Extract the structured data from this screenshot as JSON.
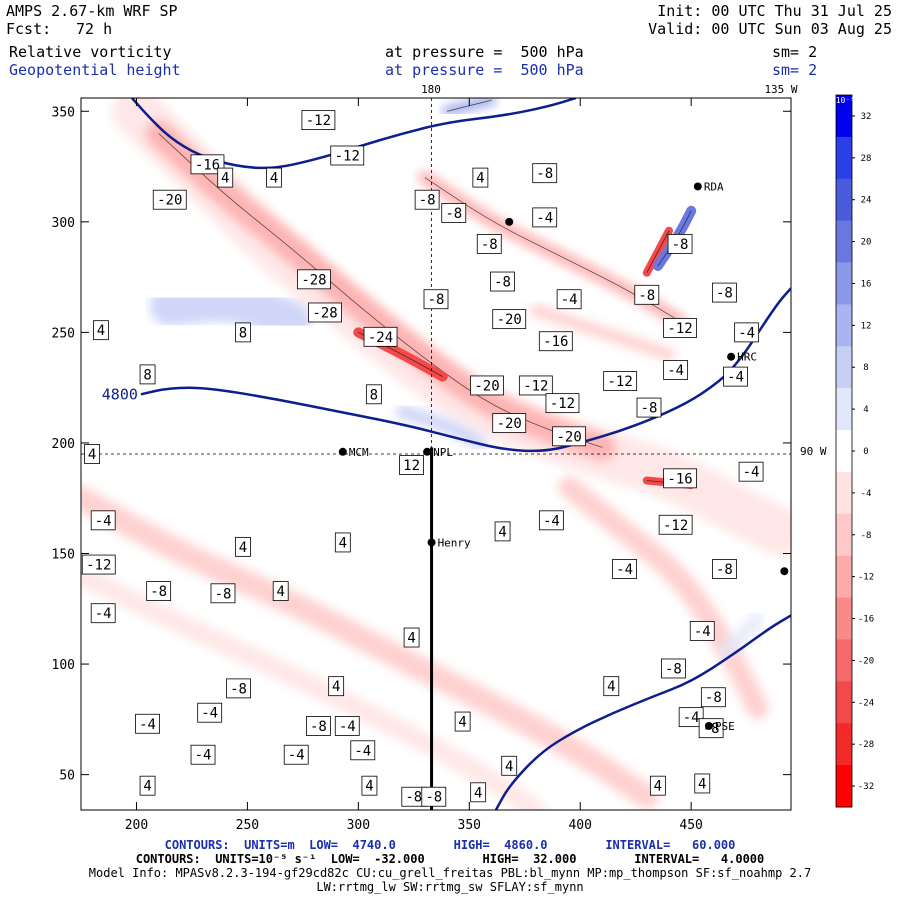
{
  "header": {
    "model": "AMPS 2.67-km WRF SP",
    "init": "Init: 00 UTC Thu 31 Jul 25",
    "fcst_label": "Fcst:",
    "fcst_value": "72 h",
    "valid": "Valid: 00 UTC Sun 03 Aug 25",
    "field1_name": "Relative vorticity",
    "field1_level": "at pressure =  500 hPa",
    "field1_sm": "sm= 2",
    "field2_name": "Geopotential height",
    "field2_level": "at pressure =  500 hPa",
    "field2_sm": "sm= 2"
  },
  "map_labels": {
    "top_lon_180": "180",
    "top_lon_135w": "135 W",
    "right_lat_90w": "90 W",
    "station_mcm": "MCM",
    "station_henry": "Henry",
    "station_hrc": "HRC",
    "station_pse": "PSE",
    "station_rda": "RDA",
    "station_npl": "NPL"
  },
  "colors": {
    "height_contour": "#0d1f8c",
    "positive_max": "#0000ee",
    "negative_max": "#ff0000",
    "zero": "#ffffff"
  },
  "chart_data": {
    "type": "heatmap",
    "xlim": [
      175,
      495
    ],
    "ylim": [
      34,
      356
    ],
    "x_ticks": [
      200,
      250,
      300,
      350,
      400,
      450
    ],
    "y_ticks": [
      50,
      100,
      150,
      200,
      250,
      300,
      350
    ],
    "colorbar": {
      "unit": "10⁻⁵ s⁻¹",
      "labels": [
        32,
        28,
        24,
        20,
        16,
        12,
        8,
        4,
        0,
        -4,
        -8,
        -12,
        -16,
        -20,
        -24,
        -28,
        -32
      ],
      "colors": [
        "#0000ee",
        "#2a3fe8",
        "#4a5cdc",
        "#6a79e0",
        "#8c98e8",
        "#aab4f0",
        "#c8cff6",
        "#e3e7fb",
        "#ffffff",
        "#ffe3e3",
        "#ffc9c9",
        "#fdaaaa",
        "#f98a8a",
        "#f46a6a",
        "#f24a4a",
        "#f42a2a",
        "#ff0000"
      ]
    },
    "height_contours": [
      {
        "label": "4800",
        "points": [
          [
            202,
            222
          ],
          [
            215,
            225
          ],
          [
            232,
            225
          ],
          [
            262,
            220
          ],
          [
            292,
            214
          ],
          [
            322,
            208
          ],
          [
            345,
            202
          ],
          [
            365,
            197
          ],
          [
            384,
            196
          ],
          [
            400,
            200
          ],
          [
            420,
            206
          ],
          [
            440,
            214
          ],
          [
            455,
            222
          ],
          [
            470,
            234
          ],
          [
            488,
            262
          ],
          [
            495,
            270
          ]
        ]
      },
      {
        "label": "",
        "points": [
          [
            198,
            356
          ],
          [
            205,
            348
          ],
          [
            215,
            338
          ],
          [
            228,
            330
          ],
          [
            245,
            325
          ],
          [
            262,
            324
          ],
          [
            280,
            328
          ],
          [
            300,
            334
          ],
          [
            320,
            340
          ],
          [
            340,
            345
          ],
          [
            365,
            348
          ],
          [
            385,
            352
          ],
          [
            398,
            356
          ]
        ]
      },
      {
        "label": "",
        "points": [
          [
            362,
            34
          ],
          [
            368,
            45
          ],
          [
            382,
            60
          ],
          [
            398,
            70
          ],
          [
            415,
            78
          ],
          [
            432,
            85
          ],
          [
            450,
            92
          ],
          [
            470,
            105
          ],
          [
            485,
            116
          ],
          [
            495,
            122
          ]
        ]
      }
    ],
    "vorticity_bands": [
      {
        "sign": "neg",
        "level": 1,
        "width": 48,
        "points": [
          [
            200,
            350
          ],
          [
            230,
            320
          ],
          [
            260,
            290
          ],
          [
            290,
            265
          ],
          [
            320,
            240
          ],
          [
            350,
            218
          ],
          [
            380,
            205
          ],
          [
            410,
            195
          ],
          [
            440,
            186
          ],
          [
            470,
            170
          ],
          [
            490,
            160
          ]
        ]
      },
      {
        "sign": "neg",
        "level": 3,
        "width": 26,
        "points": [
          [
            210,
            340
          ],
          [
            240,
            312
          ],
          [
            270,
            288
          ],
          [
            300,
            262
          ],
          [
            330,
            238
          ],
          [
            358,
            218
          ],
          [
            385,
            206
          ],
          [
            410,
            198
          ]
        ]
      },
      {
        "sign": "neg",
        "level": 6,
        "width": 10,
        "points": [
          [
            300,
            250
          ],
          [
            320,
            240
          ],
          [
            338,
            230
          ]
        ]
      },
      {
        "sign": "neg",
        "level": 6,
        "width": 8,
        "points": [
          [
            430,
            183
          ],
          [
            450,
            181
          ]
        ]
      },
      {
        "sign": "neg",
        "level": 6,
        "width": 8,
        "points": [
          [
            430,
            277
          ],
          [
            440,
            296
          ]
        ]
      },
      {
        "sign": "neg",
        "level": 2,
        "width": 24,
        "points": [
          [
            175,
            175
          ],
          [
            220,
            150
          ],
          [
            270,
            128
          ],
          [
            320,
            102
          ],
          [
            360,
            82
          ],
          [
            400,
            60
          ],
          [
            430,
            40
          ]
        ]
      },
      {
        "sign": "neg",
        "level": 1,
        "width": 20,
        "points": [
          [
            175,
            140
          ],
          [
            220,
            118
          ],
          [
            270,
            95
          ],
          [
            320,
            70
          ],
          [
            360,
            48
          ],
          [
            380,
            34
          ]
        ]
      },
      {
        "sign": "neg",
        "level": 2,
        "width": 22,
        "points": [
          [
            395,
            180
          ],
          [
            420,
            160
          ],
          [
            445,
            140
          ],
          [
            465,
            110
          ],
          [
            480,
            80
          ]
        ]
      },
      {
        "sign": "neg",
        "level": 3,
        "width": 14,
        "points": [
          [
            330,
            320
          ],
          [
            360,
            300
          ],
          [
            390,
            285
          ],
          [
            420,
            270
          ],
          [
            445,
            255
          ]
        ]
      },
      {
        "sign": "neg",
        "level": 2,
        "width": 12,
        "points": [
          [
            380,
            260
          ],
          [
            410,
            250
          ],
          [
            440,
            240
          ]
        ]
      },
      {
        "sign": "pos",
        "level": 2,
        "width": 40,
        "points": [
          [
            215,
            262
          ],
          [
            245,
            265
          ],
          [
            270,
            255
          ]
        ]
      },
      {
        "sign": "pos",
        "level": 2,
        "width": 14,
        "points": [
          [
            320,
            214
          ],
          [
            340,
            208
          ],
          [
            355,
            200
          ]
        ]
      },
      {
        "sign": "pos",
        "level": 5,
        "width": 10,
        "points": [
          [
            435,
            280
          ],
          [
            445,
            295
          ],
          [
            450,
            305
          ]
        ]
      },
      {
        "sign": "pos",
        "level": 4,
        "width": 10,
        "points": [
          [
            340,
            350
          ],
          [
            360,
            355
          ]
        ]
      },
      {
        "sign": "pos",
        "level": 1,
        "width": 14,
        "points": [
          [
            465,
            105
          ],
          [
            480,
            120
          ]
        ]
      }
    ],
    "value_labels": [
      {
        "text": "-12",
        "x": 282,
        "y": 346
      },
      {
        "text": "-12",
        "x": 295,
        "y": 330
      },
      {
        "text": "-16",
        "x": 232,
        "y": 326
      },
      {
        "text": "4",
        "x": 240,
        "y": 320
      },
      {
        "text": "-20",
        "x": 215,
        "y": 310
      },
      {
        "text": "-8",
        "x": 331,
        "y": 310
      },
      {
        "text": "-8",
        "x": 343,
        "y": 304
      },
      {
        "text": "4",
        "x": 355,
        "y": 320
      },
      {
        "text": "-8",
        "x": 384,
        "y": 322
      },
      {
        "text": "-4",
        "x": 384,
        "y": 302
      },
      {
        "text": "-8",
        "x": 359,
        "y": 290
      },
      {
        "text": "-8",
        "x": 365,
        "y": 273
      },
      {
        "text": "-28",
        "x": 280,
        "y": 274
      },
      {
        "text": "-8",
        "x": 335,
        "y": 265
      },
      {
        "text": "-28",
        "x": 285,
        "y": 259
      },
      {
        "text": "-4",
        "x": 395,
        "y": 265
      },
      {
        "text": "-20",
        "x": 368,
        "y": 256
      },
      {
        "text": "-16",
        "x": 389,
        "y": 246
      },
      {
        "text": "-24",
        "x": 310,
        "y": 248
      },
      {
        "text": "8",
        "x": 248,
        "y": 250
      },
      {
        "text": "4",
        "x": 184,
        "y": 251
      },
      {
        "text": "-20",
        "x": 358,
        "y": 226
      },
      {
        "text": "-12",
        "x": 380,
        "y": 226
      },
      {
        "text": "-12",
        "x": 418,
        "y": 228
      },
      {
        "text": "-12",
        "x": 392,
        "y": 218
      },
      {
        "text": "-8",
        "x": 431,
        "y": 216
      },
      {
        "text": "8",
        "x": 205,
        "y": 231
      },
      {
        "text": "8",
        "x": 307,
        "y": 222
      },
      {
        "text": "-20",
        "x": 368,
        "y": 209
      },
      {
        "text": "-20",
        "x": 395,
        "y": 203
      },
      {
        "text": "-12",
        "x": 445,
        "y": 252
      },
      {
        "text": "-4",
        "x": 443,
        "y": 233
      },
      {
        "text": "-4",
        "x": 475,
        "y": 250
      },
      {
        "text": "-4",
        "x": 470,
        "y": 230
      },
      {
        "text": "-8",
        "x": 430,
        "y": 267
      },
      {
        "text": "-8",
        "x": 465,
        "y": 268
      },
      {
        "text": "-8",
        "x": 445,
        "y": 290
      },
      {
        "text": "4",
        "x": 180,
        "y": 195
      },
      {
        "text": "12",
        "x": 324,
        "y": 190
      },
      {
        "text": "-16",
        "x": 445,
        "y": 184
      },
      {
        "text": "-4",
        "x": 477,
        "y": 187
      },
      {
        "text": "-12",
        "x": 443,
        "y": 163
      },
      {
        "text": "-4",
        "x": 387,
        "y": 165
      },
      {
        "text": "4",
        "x": 365,
        "y": 160
      },
      {
        "text": "4",
        "x": 293,
        "y": 155
      },
      {
        "text": "4",
        "x": 248,
        "y": 153
      },
      {
        "text": "-4",
        "x": 185,
        "y": 165
      },
      {
        "text": "-12",
        "x": 183,
        "y": 145
      },
      {
        "text": "-4",
        "x": 185,
        "y": 123
      },
      {
        "text": "-8",
        "x": 210,
        "y": 133
      },
      {
        "text": "-8",
        "x": 239,
        "y": 132
      },
      {
        "text": "4",
        "x": 265,
        "y": 133
      },
      {
        "text": "-4",
        "x": 420,
        "y": 143
      },
      {
        "text": "-8",
        "x": 465,
        "y": 143
      },
      {
        "text": "-4",
        "x": 455,
        "y": 115
      },
      {
        "text": "4",
        "x": 324,
        "y": 112
      },
      {
        "text": "-8",
        "x": 442,
        "y": 98
      },
      {
        "text": "4",
        "x": 414,
        "y": 90
      },
      {
        "text": "-8",
        "x": 246,
        "y": 89
      },
      {
        "text": "4",
        "x": 290,
        "y": 90
      },
      {
        "text": "-8",
        "x": 460,
        "y": 85
      },
      {
        "text": "-4",
        "x": 233,
        "y": 78
      },
      {
        "text": "-4",
        "x": 205,
        "y": 73
      },
      {
        "text": "-8",
        "x": 282,
        "y": 72
      },
      {
        "text": "-4",
        "x": 295,
        "y": 72
      },
      {
        "text": "4",
        "x": 347,
        "y": 74
      },
      {
        "text": "-4",
        "x": 450,
        "y": 76
      },
      {
        "text": "-8",
        "x": 459,
        "y": 71
      },
      {
        "text": "-4",
        "x": 230,
        "y": 59
      },
      {
        "text": "-4",
        "x": 272,
        "y": 59
      },
      {
        "text": "-4",
        "x": 302,
        "y": 61
      },
      {
        "text": "4",
        "x": 368,
        "y": 54
      },
      {
        "text": "4",
        "x": 435,
        "y": 45
      },
      {
        "text": "4",
        "x": 455,
        "y": 46
      },
      {
        "text": "4",
        "x": 205,
        "y": 45
      },
      {
        "text": "4",
        "x": 305,
        "y": 45
      },
      {
        "text": "-8",
        "x": 325,
        "y": 40
      },
      {
        "text": "-8",
        "x": 334,
        "y": 40
      },
      {
        "text": "4",
        "x": 354,
        "y": 42
      },
      {
        "text": "4",
        "x": 262,
        "y": 320
      }
    ],
    "stations": [
      {
        "key": "station_mcm",
        "x": 293,
        "y": 196,
        "side": "right"
      },
      {
        "key": "station_henry",
        "x": 333,
        "y": 155,
        "side": "right"
      },
      {
        "key": "station_hrc",
        "x": 468,
        "y": 239,
        "side": "right"
      },
      {
        "key": "station_pse",
        "x": 458,
        "y": 72,
        "side": "right"
      },
      {
        "key": "station_rda",
        "x": 453,
        "y": 316,
        "side": "right"
      },
      {
        "key": "station_npl",
        "x": 331,
        "y": 196,
        "side": "right"
      }
    ],
    "extra_dots": [
      [
        368,
        300
      ],
      [
        492,
        142
      ]
    ],
    "pole_line": {
      "x": 333,
      "y0": 34,
      "y1": 198
    },
    "ref_lines": {
      "lat_y": 195,
      "lon_x": 333
    }
  },
  "footer": {
    "line1": "CONTOURS:  UNITS=m  LOW=  4740.0        HIGH=  4860.0        INTERVAL=   60.000",
    "line2": "CONTOURS:  UNITS=10⁻⁵ s⁻¹  LOW=  -32.000        HIGH=  32.000        INTERVAL=   4.0000",
    "line3": "Model Info: MPASv8.2.3-194-gf29cd82c CU:cu_grell_freitas PBL:bl_mynn MP:mp_thompson SF:sf_noahmp 2.7",
    "line4": "LW:rrtmg_lw SW:rrtmg_sw SFLAY:sf_mynn"
  }
}
